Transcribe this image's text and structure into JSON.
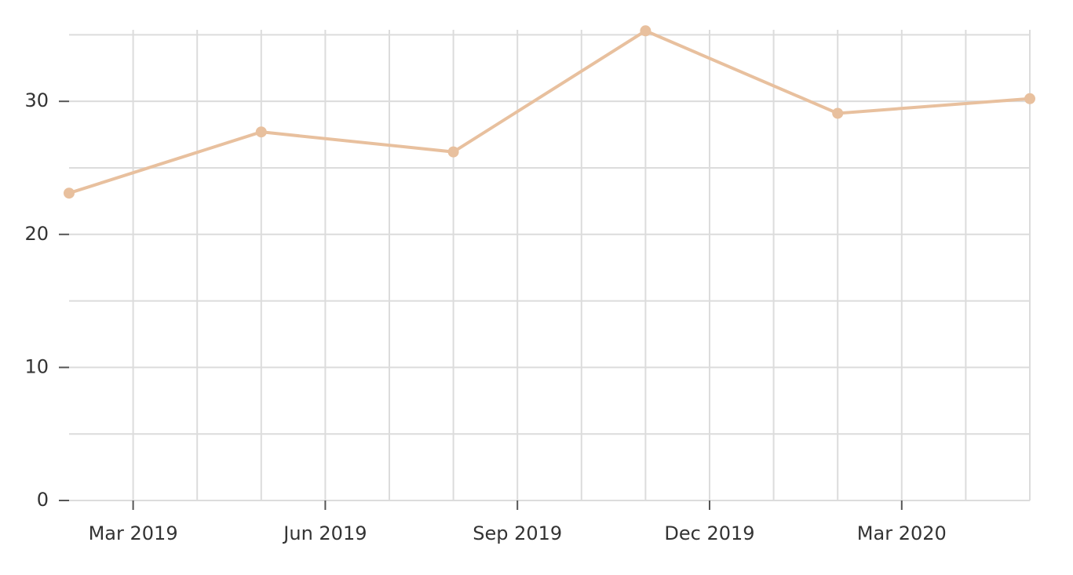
{
  "chart_data": {
    "type": "line",
    "x": [
      "2019-02",
      "2019-05",
      "2019-08",
      "2019-11",
      "2020-02",
      "2020-05"
    ],
    "series": [
      {
        "color": "#e8c09e",
        "values": [
          23.1,
          27.7,
          26.2,
          35.3,
          29.1,
          30.2
        ]
      }
    ],
    "xlim": [
      "2019-02",
      "2020-05"
    ],
    "xticks": [
      {
        "value": "2019-03",
        "label": "Mar 2019"
      },
      {
        "value": "2019-06",
        "label": "Jun 2019"
      },
      {
        "value": "2019-09",
        "label": "Sep 2019"
      },
      {
        "value": "2019-12",
        "label": "Dec 2019"
      },
      {
        "value": "2020-03",
        "label": "Mar 2020"
      }
    ],
    "x_minor_ticks": [
      "2019-04",
      "2019-05",
      "2019-07",
      "2019-08",
      "2019-10",
      "2019-11",
      "2020-01",
      "2020-02",
      "2020-04",
      "2020-05"
    ],
    "ylim": [
      0,
      35.4
    ],
    "yticks": [
      0,
      10,
      20,
      30
    ],
    "y_minor_ticks": [
      5,
      15,
      25,
      35
    ],
    "grid": true
  }
}
